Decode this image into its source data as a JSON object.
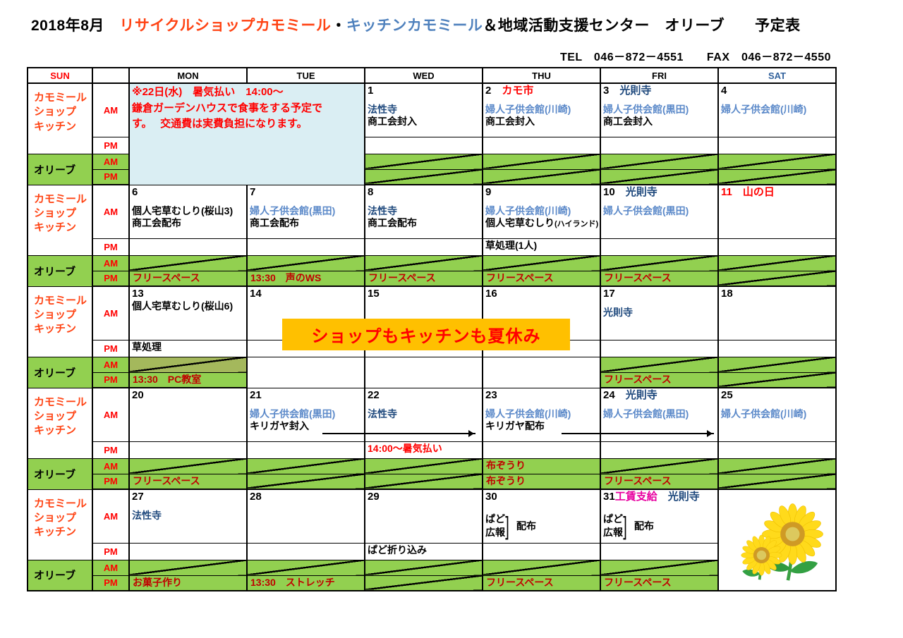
{
  "title": {
    "segments": [
      {
        "text": "2018年8月　",
        "color": "k"
      },
      {
        "text": "リサイクルショップカモミール",
        "color": "o"
      },
      {
        "text": "・",
        "color": "k"
      },
      {
        "text": "キッチンカモミール",
        "color": "kb"
      },
      {
        "text": "＆地域活動支援センター　オリーブ　　予定表",
        "color": "k"
      }
    ]
  },
  "contact": "TEL　046－872－4551　　FAX　046－872－4550",
  "day_headers": [
    {
      "label": "SUN",
      "cls": "sun"
    },
    {
      "label": "",
      "cls": ""
    },
    {
      "label": "MON",
      "cls": ""
    },
    {
      "label": "TUE",
      "cls": ""
    },
    {
      "label": "WED",
      "cls": ""
    },
    {
      "label": "THU",
      "cls": ""
    },
    {
      "label": "FRI",
      "cls": ""
    },
    {
      "label": "SAT",
      "cls": "sat"
    }
  ],
  "row_labels": {
    "shop": [
      "カモミール",
      "ショップ",
      "キッチン"
    ],
    "olive": "オリーブ",
    "am": "AM",
    "pm": "PM"
  },
  "banner_text": "ショップもキッチンも夏休み",
  "images": {
    "saturday_week5": "sunflowers"
  },
  "colors": {
    "green": "#92d050",
    "olive_green": "#a4b85c",
    "notice_blue": "#daeef3",
    "banner_orange": "#ffc000",
    "red": "#ff0000",
    "dark_red": "#c00000",
    "navy": "#1f497d",
    "light_blue": "#5b89c9",
    "magenta": "#e800a0",
    "title_orange": "#ff4313",
    "title_blue": "#4f81bd"
  },
  "weeks": [
    {
      "rows": [
        [
          {
            "cs": 2,
            "rs": 4,
            "bg": "blue",
            "notice": true,
            "lines": [
              [
                [
                  "r",
                  "※22日(水)　暑気払い　14:00～"
                ]
              ],
              [
                [
                  "r",
                  "鎌倉ガーデンハウスで食事をする予定で"
                ]
              ],
              [
                [
                  "r",
                  "す。　 交通費は実費負担になります。"
                ]
              ]
            ]
          },
          null,
          {
            "lines": [
              [
                [
                  "k",
                  "1"
                ]
              ],
              "gap",
              [
                [
                  "n",
                  "法性寺"
                ]
              ],
              [
                [
                  "k",
                  "商工会封入"
                ]
              ]
            ]
          },
          {
            "lines": [
              [
                [
                  "k",
                  "2　"
                ],
                [
                  "r",
                  "カモ市"
                ]
              ],
              "gap",
              [
                [
                  "b",
                  "婦人子供会館(川崎)"
                ]
              ],
              [
                [
                  "k",
                  "商工会封入"
                ]
              ]
            ]
          },
          {
            "lines": [
              [
                [
                  "k",
                  "3　"
                ],
                [
                  "n",
                  "光則寺"
                ]
              ],
              "gap",
              [
                [
                  "b",
                  "婦人子供会館(黒田)"
                ]
              ],
              [
                [
                  "k",
                  "商工会封入"
                ]
              ]
            ]
          },
          {
            "lines": [
              [
                [
                  "k",
                  "4"
                ]
              ],
              "gap",
              [
                [
                  "b",
                  "婦人子供会館(川崎)"
                ]
              ]
            ]
          }
        ],
        [
          null,
          null,
          {},
          {},
          {},
          {}
        ],
        [
          null,
          null,
          {
            "bg": "green",
            "diag": true
          },
          {
            "bg": "green",
            "diag": true
          },
          {
            "bg": "green",
            "diag": true
          },
          {
            "bg": "green",
            "diag": true
          }
        ],
        [
          null,
          null,
          {
            "bg": "green",
            "diag": true
          },
          {
            "bg": "green",
            "diag": true
          },
          {
            "bg": "green",
            "diag": true
          },
          {
            "bg": "green",
            "diag": true
          }
        ]
      ]
    },
    {
      "rows": [
        [
          {
            "lines": [
              [
                [
                  "k",
                  "6"
                ]
              ],
              "gap",
              [
                [
                  "k",
                  "個人宅草むしり(桜山3)"
                ]
              ],
              [
                [
                  "k",
                  "商工会配布"
                ]
              ]
            ]
          },
          {
            "lines": [
              [
                [
                  "k",
                  "7"
                ]
              ],
              "gap",
              [
                [
                  "b",
                  "婦人子供会館(黒田)"
                ]
              ],
              [
                [
                  "k",
                  "商工会配布"
                ]
              ]
            ]
          },
          {
            "lines": [
              [
                [
                  "k",
                  "8"
                ]
              ],
              "gap",
              [
                [
                  "n",
                  "法性寺"
                ]
              ],
              [
                [
                  "k",
                  "商工会配布"
                ]
              ]
            ]
          },
          {
            "lines": [
              [
                [
                  "k",
                  "9"
                ]
              ],
              "gap",
              [
                [
                  "b",
                  "婦人子供会館(川崎)"
                ]
              ],
              [
                [
                  "k",
                  "個人宅草むしり"
                ],
                [
                  "sm",
                  "(ハイランド)"
                ]
              ]
            ]
          },
          {
            "lines": [
              [
                [
                  "k",
                  "10　"
                ],
                [
                  "n",
                  "光則寺"
                ]
              ],
              "gap",
              [
                [
                  "b",
                  "婦人子供会館(黒田)"
                ]
              ]
            ]
          },
          {
            "lines": [
              [
                [
                  "r",
                  "11　山の日"
                ]
              ]
            ]
          }
        ],
        [
          {},
          {},
          {},
          {
            "lines": [
              [
                [
                  "k",
                  "草処理(1人)"
                ]
              ]
            ]
          },
          {},
          {}
        ],
        [
          {
            "bg": "green",
            "diag": true
          },
          {
            "bg": "green",
            "diag": true
          },
          {
            "bg": "green",
            "diag": true
          },
          {
            "bg": "green",
            "diag": true
          },
          {
            "bg": "green",
            "diag": true
          },
          {
            "bg": "green",
            "diag": true
          }
        ],
        [
          {
            "bg": "green",
            "lines": [
              [
                [
                  "dr",
                  "フリースペース"
                ]
              ]
            ]
          },
          {
            "bg": "green",
            "lines": [
              [
                [
                  "dr",
                  "13:30　声のWS"
                ]
              ]
            ]
          },
          {
            "bg": "green",
            "lines": [
              [
                [
                  "dr",
                  "フリースペース"
                ]
              ]
            ]
          },
          {
            "bg": "green",
            "lines": [
              [
                [
                  "dr",
                  "フリースペース"
                ]
              ]
            ]
          },
          {
            "bg": "green",
            "lines": [
              [
                [
                  "dr",
                  "フリースペース"
                ]
              ]
            ]
          },
          {
            "bg": "green",
            "diag": true
          }
        ]
      ]
    },
    {
      "rows": [
        [
          {
            "lines": [
              [
                [
                  "k",
                  "13"
                ]
              ],
              [
                [
                  "k",
                  "個人宅草むしり(桜山6)"
                ]
              ]
            ]
          },
          {
            "lines": [
              [
                [
                  "k",
                  "14"
                ]
              ]
            ]
          },
          {
            "lines": [
              [
                [
                  "k",
                  "15"
                ]
              ]
            ]
          },
          {
            "lines": [
              [
                [
                  "k",
                  "16"
                ]
              ]
            ]
          },
          {
            "lines": [
              [
                [
                  "k",
                  "17"
                ]
              ],
              "gap",
              [
                [
                  "n",
                  "光則寺"
                ]
              ]
            ]
          },
          {
            "lines": [
              [
                [
                  "k",
                  "18"
                ]
              ]
            ]
          }
        ],
        [
          {
            "lines": [
              [
                [
                  "k",
                  "草処理"
                ]
              ]
            ]
          },
          {},
          {},
          {},
          {},
          {}
        ],
        [
          {
            "bg": "olive",
            "diag": true
          },
          {
            "rs": 2,
            "bg": "white"
          },
          {
            "rs": 2,
            "bg": "white"
          },
          {
            "rs": 2,
            "bg": "white"
          },
          {
            "bg": "green",
            "diag": true
          },
          {
            "bg": "green",
            "diag": true
          }
        ],
        [
          {
            "bg": "green",
            "lines": [
              [
                [
                  "dr",
                  "13:30　PC教室"
                ]
              ]
            ]
          },
          null,
          null,
          null,
          {
            "bg": "green",
            "lines": [
              [
                [
                  "dr",
                  "フリースペース"
                ]
              ]
            ]
          },
          {
            "bg": "green",
            "diag": true
          }
        ]
      ]
    },
    {
      "rows": [
        [
          {
            "lines": [
              [
                [
                  "k",
                  "20"
                ]
              ]
            ]
          },
          {
            "lines": [
              [
                [
                  "k",
                  "21"
                ]
              ],
              "gap",
              [
                [
                  "b",
                  "婦人子供会館(黒田)"
                ]
              ],
              [
                [
                  "k",
                  "キリガヤ封入"
                ]
              ]
            ]
          },
          {
            "lines": [
              [
                [
                  "k",
                  "22"
                ]
              ],
              "gap",
              [
                [
                  "n",
                  "法性寺"
                ]
              ]
            ]
          },
          {
            "lines": [
              [
                [
                  "k",
                  "23"
                ]
              ],
              "gap",
              [
                [
                  "b",
                  "婦人子供会館(川崎)"
                ]
              ],
              [
                [
                  "k",
                  "キリガヤ配布"
                ]
              ]
            ]
          },
          {
            "lines": [
              [
                [
                  "k",
                  "24　"
                ],
                [
                  "n",
                  "光則寺"
                ]
              ],
              "gap",
              [
                [
                  "b",
                  "婦人子供会館(黒田)"
                ]
              ]
            ]
          },
          {
            "lines": [
              [
                [
                  "k",
                  "25"
                ]
              ],
              "gap",
              [
                [
                  "b",
                  "婦人子供会館(川崎)"
                ]
              ]
            ]
          }
        ],
        [
          {},
          {},
          {
            "lines": [
              [
                [
                  "r",
                  "14:00～暑気払い"
                ]
              ]
            ]
          },
          {},
          {},
          {}
        ],
        [
          {
            "bg": "green",
            "diag": true
          },
          {
            "bg": "green",
            "diag": true
          },
          {
            "bg": "green",
            "diag": true
          },
          {
            "bg": "green",
            "lines": [
              [
                [
                  "dr",
                  "布ぞうり"
                ]
              ]
            ]
          },
          {
            "bg": "green",
            "diag": true
          },
          {
            "bg": "green",
            "diag": true
          }
        ],
        [
          {
            "bg": "green",
            "lines": [
              [
                [
                  "dr",
                  "フリースペース"
                ]
              ]
            ]
          },
          {
            "bg": "green",
            "diag": true
          },
          {
            "bg": "green",
            "diag": true
          },
          {
            "bg": "green",
            "lines": [
              [
                [
                  "dr",
                  "布ぞうり"
                ]
              ]
            ]
          },
          {
            "bg": "green",
            "lines": [
              [
                [
                  "dr",
                  "フリースペース"
                ]
              ]
            ]
          },
          {
            "bg": "green",
            "diag": true
          }
        ]
      ]
    },
    {
      "rows": [
        [
          {
            "lines": [
              [
                [
                  "k",
                  "27"
                ]
              ],
              "gap",
              [
                [
                  "n",
                  "法性寺"
                ]
              ]
            ]
          },
          {
            "lines": [
              [
                [
                  "k",
                  "28"
                ]
              ]
            ]
          },
          {
            "lines": [
              [
                [
                  "k",
                  "29"
                ]
              ]
            ]
          },
          {
            "lines": [
              [
                [
                  "k",
                  "30"
                ]
              ],
              "gap",
              {
                "bracket": {
                  "left": [
                    "ぱど",
                    "広報"
                  ],
                  "right": "配布"
                }
              }
            ]
          },
          {
            "lines": [
              [
                [
                  "k",
                  "31"
                ],
                [
                  "m",
                  "工賃支給"
                ],
                [
                  "n",
                  "　光則寺"
                ]
              ],
              "gap",
              {
                "bracket": {
                  "left": [
                    "ぱど",
                    "広報"
                  ],
                  "right": "配布"
                }
              }
            ]
          },
          {
            "rs": 4,
            "bg": "white",
            "sunflower": true
          }
        ],
        [
          {},
          {},
          {
            "lines": [
              [
                [
                  "k",
                  "ぱど折り込み"
                ]
              ]
            ]
          },
          {},
          {},
          null
        ],
        [
          {
            "bg": "green",
            "diag": true
          },
          {
            "bg": "green",
            "diag": true
          },
          {
            "bg": "green",
            "diag": true
          },
          {
            "bg": "green",
            "diag": true
          },
          {
            "bg": "green",
            "diag": true
          },
          null
        ],
        [
          {
            "bg": "green",
            "lines": [
              [
                [
                  "dr",
                  "お菓子作り"
                ]
              ]
            ]
          },
          {
            "bg": "green",
            "lines": [
              [
                [
                  "dr",
                  "13:30　ストレッチ"
                ]
              ]
            ]
          },
          {
            "bg": "green",
            "diag": true
          },
          {
            "bg": "green",
            "lines": [
              [
                [
                  "dr",
                  "フリースペース"
                ]
              ]
            ]
          },
          {
            "bg": "green",
            "lines": [
              [
                [
                  "dr",
                  "フリースペース"
                ]
              ]
            ]
          },
          null
        ]
      ]
    }
  ]
}
